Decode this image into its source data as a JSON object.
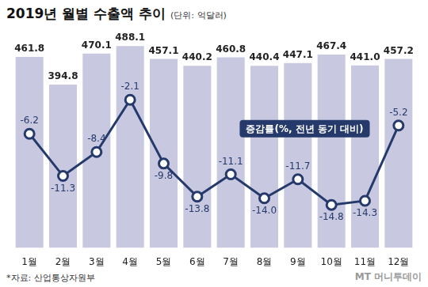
{
  "chart_data": {
    "type": "bar",
    "title": "2019년 월별 수출액 추이",
    "subtitle": "(단위: 억달러)",
    "source": "*자료: 산업통상자원부",
    "credit": "MT 머니투데이",
    "categories": [
      "1월",
      "2월",
      "3월",
      "4월",
      "5월",
      "6월",
      "7월",
      "8월",
      "9월",
      "10월",
      "11월",
      "12월"
    ],
    "series": [
      {
        "type": "bar",
        "color": "#c8c9e0",
        "values": [
          461.8,
          394.8,
          470.1,
          488.1,
          457.1,
          440.2,
          460.8,
          440.4,
          447.1,
          467.4,
          441.0,
          457.2
        ],
        "value_labels": [
          "461.8",
          "394.8",
          "470.1",
          "488.1",
          "457.1",
          "440.2",
          "460.8",
          "440.4",
          "447.1",
          "467.4",
          "441.0",
          "457.2"
        ]
      },
      {
        "name": "증감률(%, 전년 동기 대비)",
        "type": "line",
        "axis": "y2",
        "color": "#253a6b",
        "marker": "circle",
        "values": [
          -6.2,
          -11.3,
          -8.4,
          -2.1,
          -9.8,
          -13.8,
          -11.1,
          -14.0,
          -11.7,
          -14.8,
          -14.3,
          -5.2
        ],
        "value_labels": [
          "-6.2",
          "-11.3",
          "-8.4",
          "-2.1",
          "-9.8",
          "-13.8",
          "-11.1",
          "-14.0",
          "-11.7",
          "-14.8",
          "-14.3",
          "-5.2"
        ]
      }
    ],
    "ylim": [
      0,
      500
    ],
    "yticks": [
      0,
      100,
      200,
      300,
      400,
      500
    ],
    "y2lim": [
      -20,
      5
    ],
    "y2ticks": [
      -20,
      -15,
      -10,
      -5,
      0,
      5
    ],
    "grid": false,
    "data_labels": true,
    "tick_labels": "x"
  }
}
